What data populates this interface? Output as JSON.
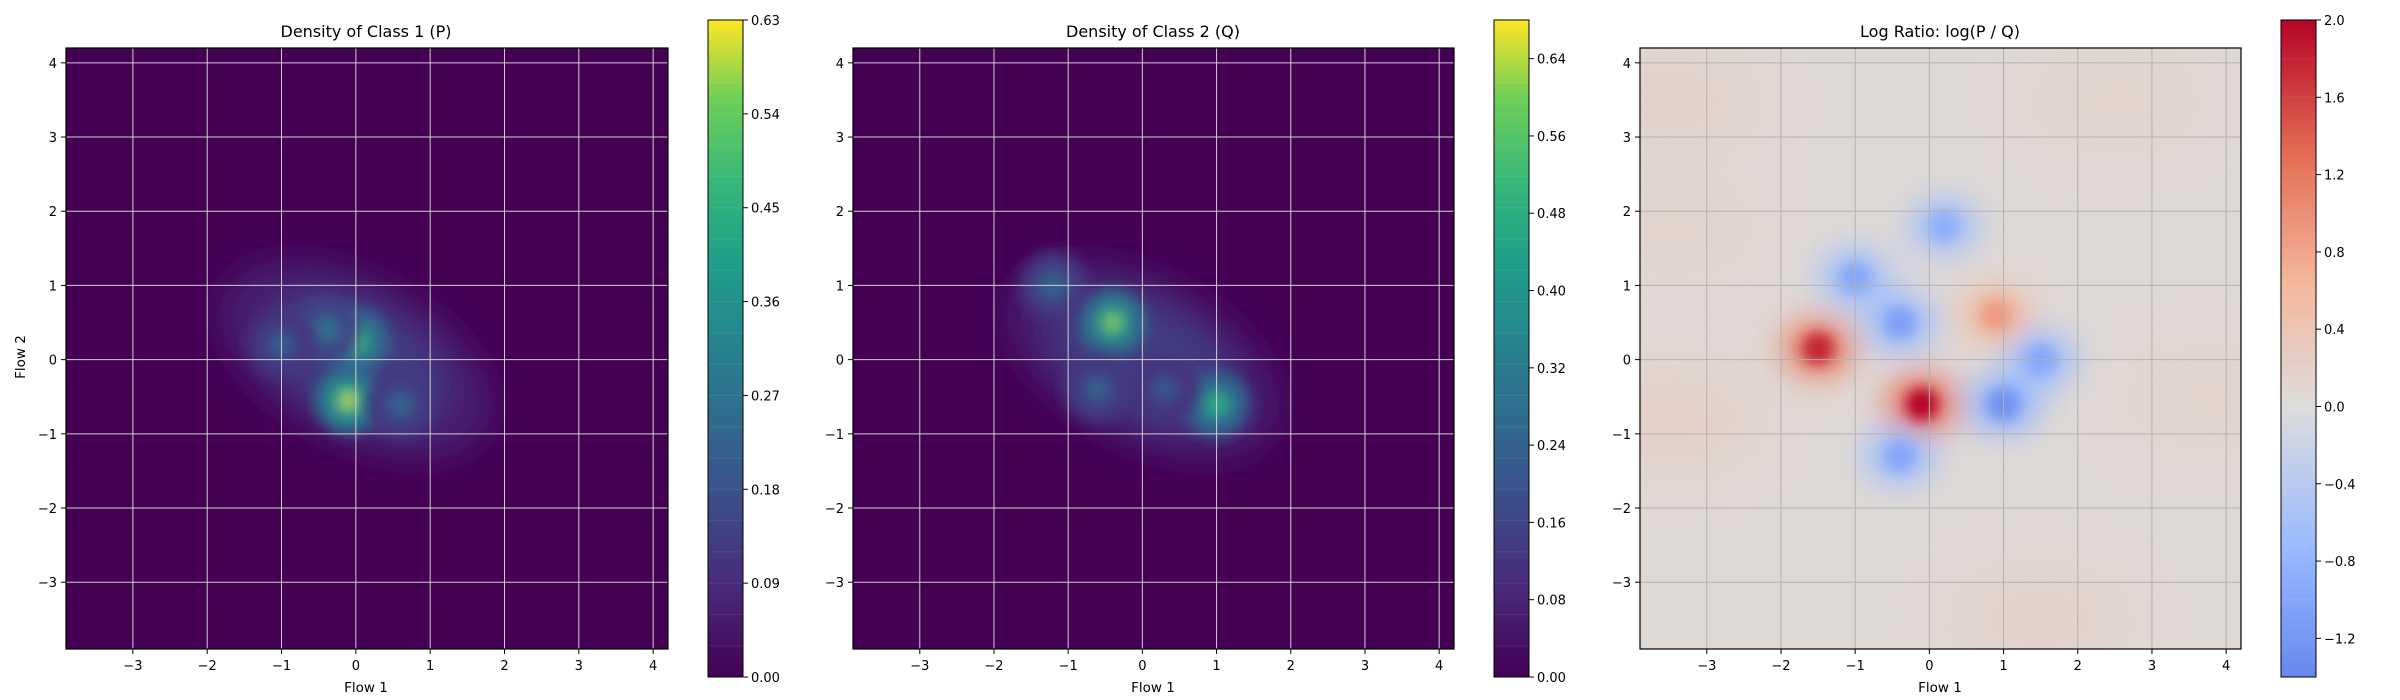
{
  "chart_data": [
    {
      "type": "heatmap",
      "title": "Density of Class 1 (P)",
      "xlabel": "Flow 1",
      "ylabel": "Flow 2",
      "xlim": [
        -3.9,
        4.2
      ],
      "ylim": [
        -3.9,
        4.2
      ],
      "xticks": [
        -3,
        -2,
        -1,
        0,
        1,
        2,
        3,
        4
      ],
      "yticks": [
        -3,
        -2,
        -1,
        0,
        1,
        2,
        3,
        4
      ],
      "grid": true,
      "colormap": "viridis",
      "colorbar": {
        "min": 0.0,
        "max": 0.63,
        "ticks": [
          "0.00",
          "0.09",
          "0.18",
          "0.27",
          "0.36",
          "0.45",
          "0.54",
          "0.63"
        ]
      },
      "peaks": [
        {
          "x": 0.0,
          "y": 0.25,
          "value": 0.55
        },
        {
          "x": -0.1,
          "y": -0.55,
          "value": 0.63
        },
        {
          "x": -0.4,
          "y": 0.4,
          "value": 0.32
        },
        {
          "x": -1.0,
          "y": 0.2,
          "value": 0.25
        },
        {
          "x": 0.6,
          "y": -0.6,
          "value": 0.27
        }
      ]
    },
    {
      "type": "heatmap",
      "title": "Density of Class 2 (Q)",
      "xlabel": "Flow 1",
      "ylabel": "",
      "xlim": [
        -3.9,
        4.2
      ],
      "ylim": [
        -3.9,
        4.2
      ],
      "xticks": [
        -3,
        -2,
        -1,
        0,
        1,
        2,
        3,
        4
      ],
      "yticks": [
        -3,
        -2,
        -1,
        0,
        1,
        2,
        3,
        4
      ],
      "grid": true,
      "colormap": "viridis",
      "colorbar": {
        "min": 0.0,
        "max": 0.68,
        "ticks": [
          "0.00",
          "0.08",
          "0.16",
          "0.24",
          "0.32",
          "0.40",
          "0.48",
          "0.56",
          "0.64"
        ]
      },
      "peaks": [
        {
          "x": -0.4,
          "y": 0.5,
          "value": 0.64
        },
        {
          "x": 1.0,
          "y": -0.6,
          "value": 0.55
        },
        {
          "x": -1.2,
          "y": 1.0,
          "value": 0.3
        },
        {
          "x": -0.6,
          "y": -0.4,
          "value": 0.28
        },
        {
          "x": 0.3,
          "y": -0.4,
          "value": 0.25
        }
      ]
    },
    {
      "type": "heatmap",
      "title": "Log Ratio: log(P / Q)",
      "xlabel": "Flow 1",
      "ylabel": "",
      "xlim": [
        -3.9,
        4.2
      ],
      "ylim": [
        -3.9,
        4.2
      ],
      "xticks": [
        -3,
        -2,
        -1,
        0,
        1,
        2,
        3,
        4
      ],
      "yticks": [
        -3,
        -2,
        -1,
        0,
        1,
        2,
        3,
        4
      ],
      "grid": true,
      "colormap": "coolwarm",
      "colorbar": {
        "min": -1.4,
        "max": 2.0,
        "ticks": [
          "−1.2",
          "−0.8",
          "−0.4",
          "0.0",
          "0.4",
          "0.8",
          "1.2",
          "1.6",
          "2.0"
        ]
      },
      "peaks": [
        {
          "x": -1.5,
          "y": 0.15,
          "value": 1.8
        },
        {
          "x": -0.1,
          "y": -0.6,
          "value": 2.0
        },
        {
          "x": 0.9,
          "y": 0.6,
          "value": 0.9
        },
        {
          "x": -1.0,
          "y": 1.1,
          "value": -1.0
        },
        {
          "x": 0.2,
          "y": 1.8,
          "value": -0.9
        },
        {
          "x": 1.0,
          "y": -0.6,
          "value": -1.3
        },
        {
          "x": 1.5,
          "y": 0.0,
          "value": -1.0
        },
        {
          "x": -0.4,
          "y": 0.5,
          "value": -1.1
        },
        {
          "x": -0.4,
          "y": -1.3,
          "value": -1.0
        }
      ]
    }
  ]
}
